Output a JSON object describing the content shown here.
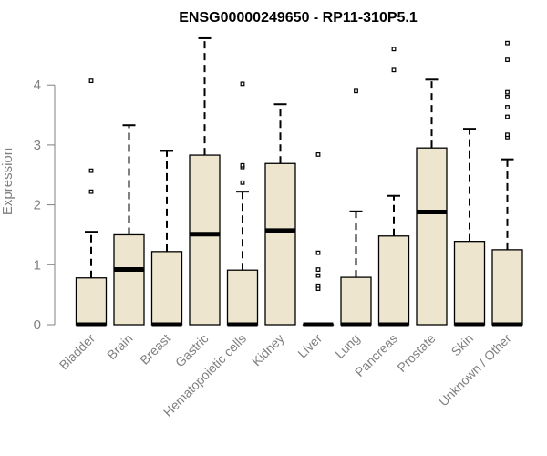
{
  "chart_data": {
    "type": "box",
    "title": "ENSG00000249650 - RP11-310P5.1",
    "xlabel": "",
    "ylabel": "Expression",
    "ylim": [
      0,
      4.9
    ],
    "yticks": [
      0,
      1,
      2,
      3,
      4
    ],
    "grid": false,
    "box_fill": "#ede5cd",
    "categories": [
      "Bladder",
      "Brain",
      "Breast",
      "Gastric",
      "Hematopoietic cells",
      "Kidney",
      "Liver",
      "Lung",
      "Pancreas",
      "Prostate",
      "Skin",
      "Unknown / Other"
    ],
    "boxes": [
      {
        "q1": 0,
        "median": 0,
        "q3": 0.78,
        "whisker_low": 0,
        "whisker_high": 1.55,
        "outliers": [
          2.22,
          2.57,
          4.07
        ]
      },
      {
        "q1": 0,
        "median": 0.92,
        "q3": 1.5,
        "whisker_low": 0,
        "whisker_high": 3.33,
        "outliers": []
      },
      {
        "q1": 0,
        "median": 0,
        "q3": 1.22,
        "whisker_low": 0,
        "whisker_high": 2.9,
        "outliers": []
      },
      {
        "q1": 0,
        "median": 1.51,
        "q3": 2.83,
        "whisker_low": 0,
        "whisker_high": 4.78,
        "outliers": []
      },
      {
        "q1": 0,
        "median": 0,
        "q3": 0.91,
        "whisker_low": 0,
        "whisker_high": 2.22,
        "outliers": [
          2.37,
          2.63,
          2.66,
          4.02
        ]
      },
      {
        "q1": 0,
        "median": 1.57,
        "q3": 2.69,
        "whisker_low": 0,
        "whisker_high": 3.68,
        "outliers": []
      },
      {
        "q1": 0,
        "median": 0,
        "q3": 0,
        "whisker_low": 0,
        "whisker_high": 0,
        "outliers": [
          0.6,
          0.65,
          0.82,
          0.92,
          1.2,
          2.84
        ]
      },
      {
        "q1": 0,
        "median": 0,
        "q3": 0.79,
        "whisker_low": 0,
        "whisker_high": 1.89,
        "outliers": [
          3.9
        ]
      },
      {
        "q1": 0,
        "median": 0,
        "q3": 1.48,
        "whisker_low": 0,
        "whisker_high": 2.15,
        "outliers": [
          4.25,
          4.6
        ]
      },
      {
        "q1": 0,
        "median": 1.88,
        "q3": 2.95,
        "whisker_low": 0,
        "whisker_high": 4.09,
        "outliers": []
      },
      {
        "q1": 0,
        "median": 0,
        "q3": 1.39,
        "whisker_low": 0,
        "whisker_high": 3.27,
        "outliers": []
      },
      {
        "q1": 0,
        "median": 0,
        "q3": 1.25,
        "whisker_low": 0,
        "whisker_high": 2.76,
        "outliers": [
          3.13,
          3.17,
          3.47,
          3.63,
          3.8,
          3.88,
          4.42,
          4.7
        ]
      }
    ]
  }
}
